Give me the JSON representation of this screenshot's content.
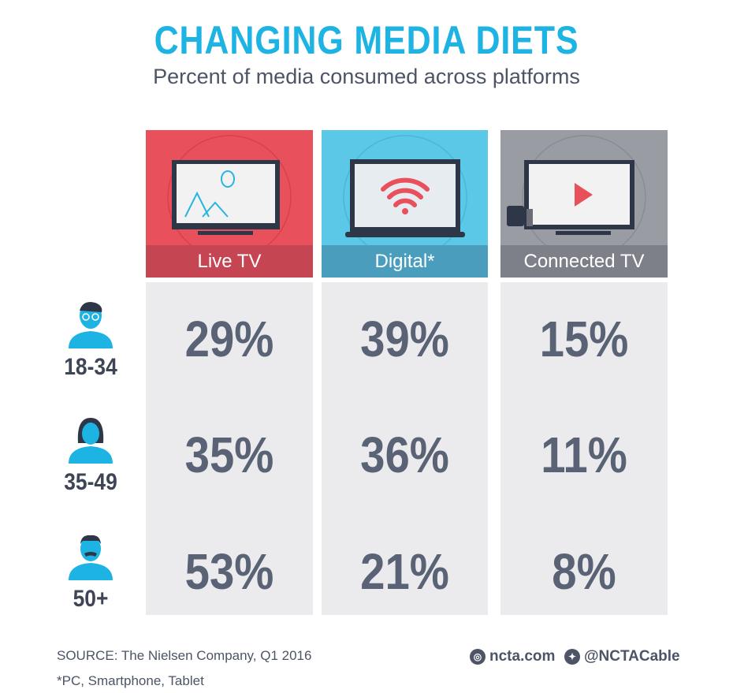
{
  "header": {
    "title": "CHANGING MEDIA DIETS",
    "subtitle": "Percent of media consumed across platforms"
  },
  "colors": {
    "title": "#1db3e3",
    "live_tv": "#e8505b",
    "digital": "#5bc8e8",
    "connected_tv": "#9a9ca3",
    "value_text": "#5a6275"
  },
  "chart_data": {
    "type": "table",
    "title": "CHANGING MEDIA DIETS",
    "subtitle": "Percent of media consumed across platforms",
    "columns": [
      "Live TV",
      "Digital*",
      "Connected TV"
    ],
    "rows": [
      "18-34",
      "35-49",
      "50+"
    ],
    "values": [
      [
        "29%",
        "39%",
        "15%"
      ],
      [
        "35%",
        "36%",
        "11%"
      ],
      [
        "53%",
        "21%",
        "8%"
      ]
    ],
    "series": [
      {
        "name": "Live TV",
        "values": [
          29,
          35,
          53
        ]
      },
      {
        "name": "Digital*",
        "values": [
          39,
          36,
          21
        ]
      },
      {
        "name": "Connected TV",
        "values": [
          15,
          11,
          8
        ]
      }
    ],
    "unit": "%"
  },
  "footer": {
    "source": "SOURCE: The Nielsen Company, Q1 2016",
    "footnote": "*PC, Smartphone, Tablet",
    "website": "ncta.com",
    "twitter": "@NCTACable"
  }
}
